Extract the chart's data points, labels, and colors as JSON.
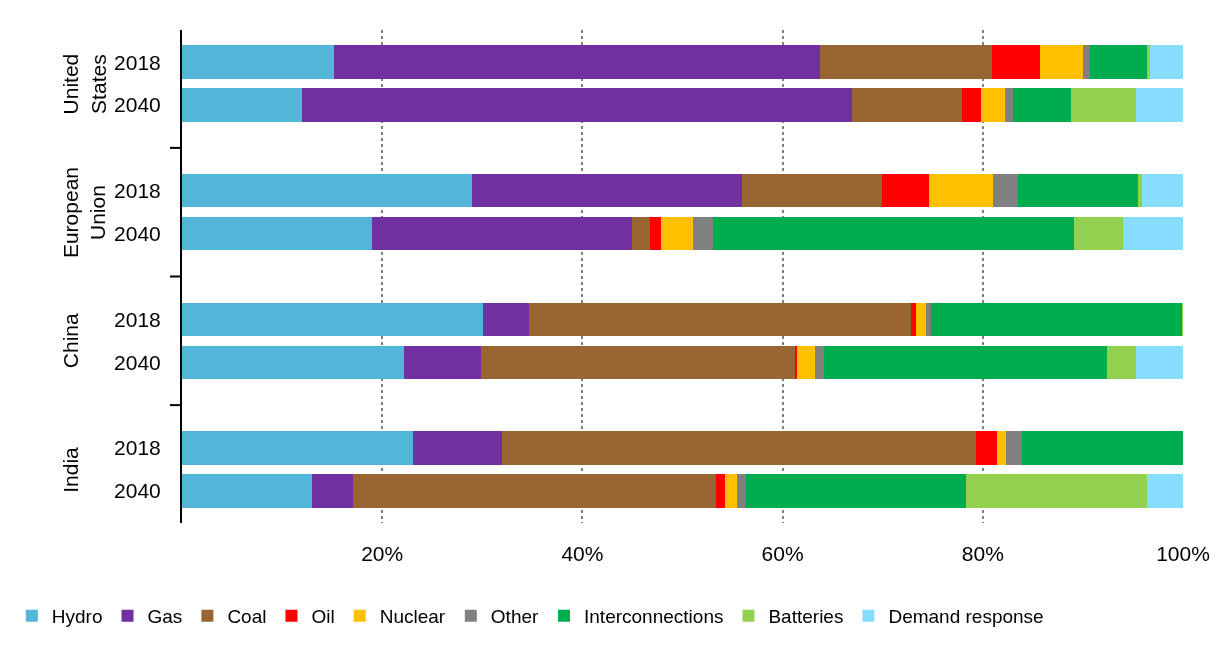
{
  "chart_data": {
    "type": "bar",
    "orientation": "horizontal",
    "stacked": true,
    "categories": [
      "2018",
      "2040",
      "2018",
      "2040",
      "2018",
      "2040",
      "2018",
      "2040"
    ],
    "annotations": [
      "United States",
      "European Union",
      "China",
      "India"
    ],
    "xlim": [
      0,
      100
    ],
    "xticks": [
      {
        "value": 20,
        "label": "20%"
      },
      {
        "value": 40,
        "label": "40%"
      },
      {
        "value": 60,
        "label": "60%"
      },
      {
        "value": 80,
        "label": "80%"
      },
      {
        "value": 100,
        "label": "100%"
      }
    ],
    "grid": "x",
    "legend": "bottom",
    "series": [
      {
        "name": "Hydro",
        "color": "#52b6d8",
        "values": [
          15.2,
          12.0,
          29.0,
          19.0,
          30.1,
          22.2,
          23.1,
          13.0
        ]
      },
      {
        "name": "Gas",
        "color": "#7030a0",
        "values": [
          48.5,
          54.9,
          26.9,
          26.0,
          4.6,
          7.7,
          8.9,
          4.1
        ]
      },
      {
        "name": "Coal",
        "color": "#996633",
        "values": [
          17.2,
          11.0,
          14.0,
          1.8,
          38.1,
          31.3,
          47.3,
          36.2
        ]
      },
      {
        "name": "Oil",
        "color": "#ff0000",
        "values": [
          4.8,
          1.9,
          4.7,
          1.1,
          0.5,
          0.2,
          2.1,
          0.9
        ]
      },
      {
        "name": "Nuclear",
        "color": "#ffc000",
        "values": [
          4.3,
          2.4,
          6.4,
          3.1,
          1.0,
          1.8,
          0.9,
          1.2
        ]
      },
      {
        "name": "Other",
        "color": "#808080",
        "values": [
          0.7,
          0.8,
          2.5,
          2.0,
          0.5,
          0.9,
          1.6,
          0.9
        ]
      },
      {
        "name": "Interconnections",
        "color": "#00ad4e",
        "values": [
          5.7,
          5.8,
          12.0,
          36.1,
          25.1,
          28.3,
          16.1,
          22.0
        ]
      },
      {
        "name": "Batteries",
        "color": "#92d050",
        "values": [
          0.3,
          6.5,
          0.4,
          4.9,
          0.1,
          2.9,
          0,
          18.1
        ]
      },
      {
        "name": "Demand response",
        "color": "#87ddfd",
        "values": [
          3.3,
          4.7,
          4.1,
          6.0,
          0,
          4.7,
          0,
          3.6
        ]
      }
    ]
  }
}
